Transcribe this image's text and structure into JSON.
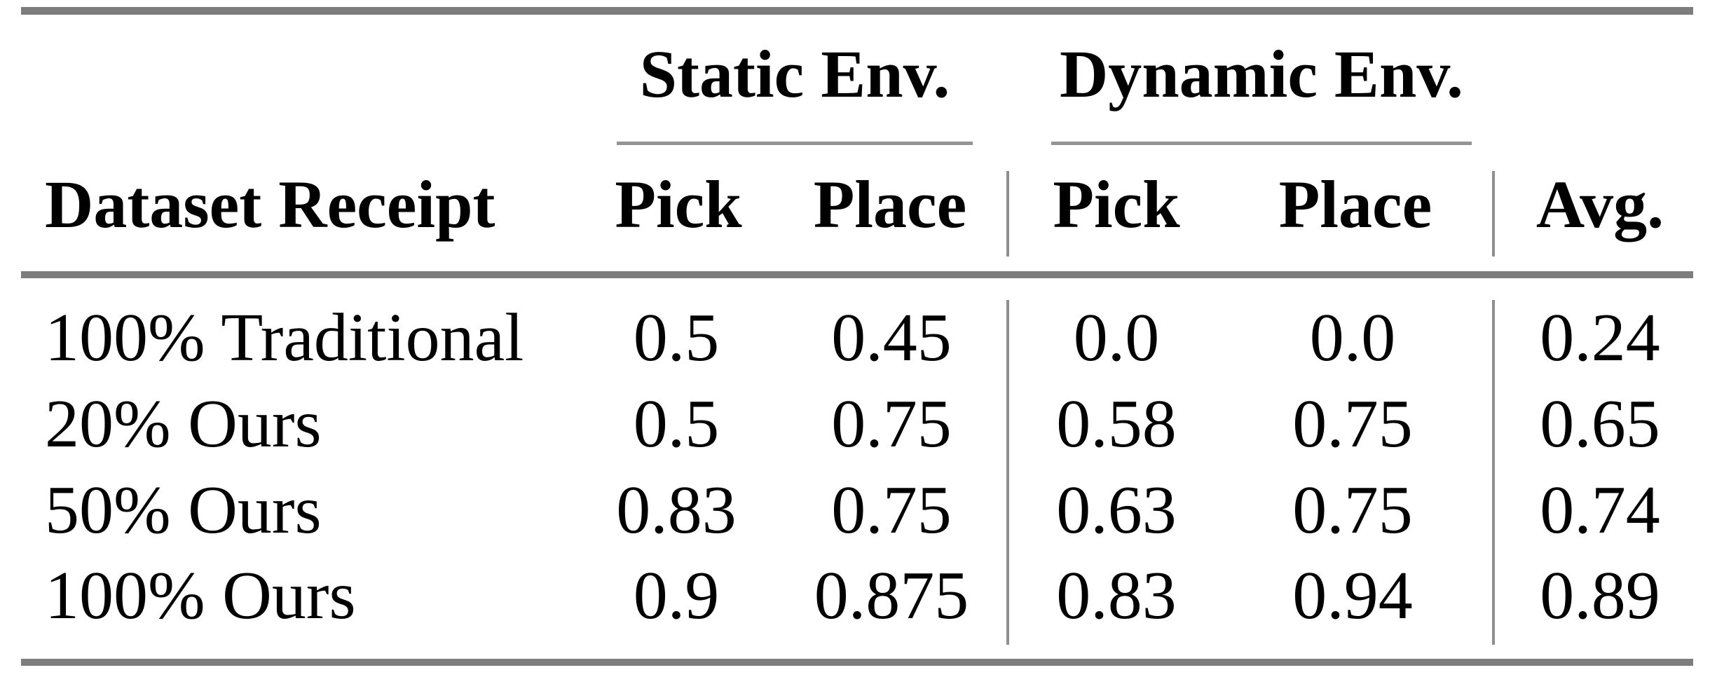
{
  "table": {
    "spanners": [
      {
        "label": "Static Env."
      },
      {
        "label": "Dynamic Env."
      }
    ],
    "headers": {
      "dataset": "Dataset Receipt",
      "static_pick": "Pick",
      "static_place": "Place",
      "dynamic_pick": "Pick",
      "dynamic_place": "Place",
      "avg": "Avg."
    },
    "rows": [
      {
        "label": "100% Traditional",
        "static_pick": "0.5",
        "static_place": "0.45",
        "dynamic_pick": "0.0",
        "dynamic_place": "0.0",
        "avg": "0.24"
      },
      {
        "label": "20% Ours",
        "static_pick": "0.5",
        "static_place": "0.75",
        "dynamic_pick": "0.58",
        "dynamic_place": "0.75",
        "avg": "0.65"
      },
      {
        "label": "50% Ours",
        "static_pick": "0.83",
        "static_place": "0.75",
        "dynamic_pick": "0.63",
        "dynamic_place": "0.75",
        "avg": "0.74"
      },
      {
        "label": "100% Ours",
        "static_pick": "0.9",
        "static_place": "0.875",
        "dynamic_pick": "0.83",
        "dynamic_place": "0.94",
        "avg": "0.89"
      }
    ],
    "colors": {
      "thick_rule": "#7d7d7d",
      "thin_rule": "#949494",
      "vertical_rule": "#8f8f8f",
      "text": "#000000",
      "background": "#ffffff"
    }
  }
}
